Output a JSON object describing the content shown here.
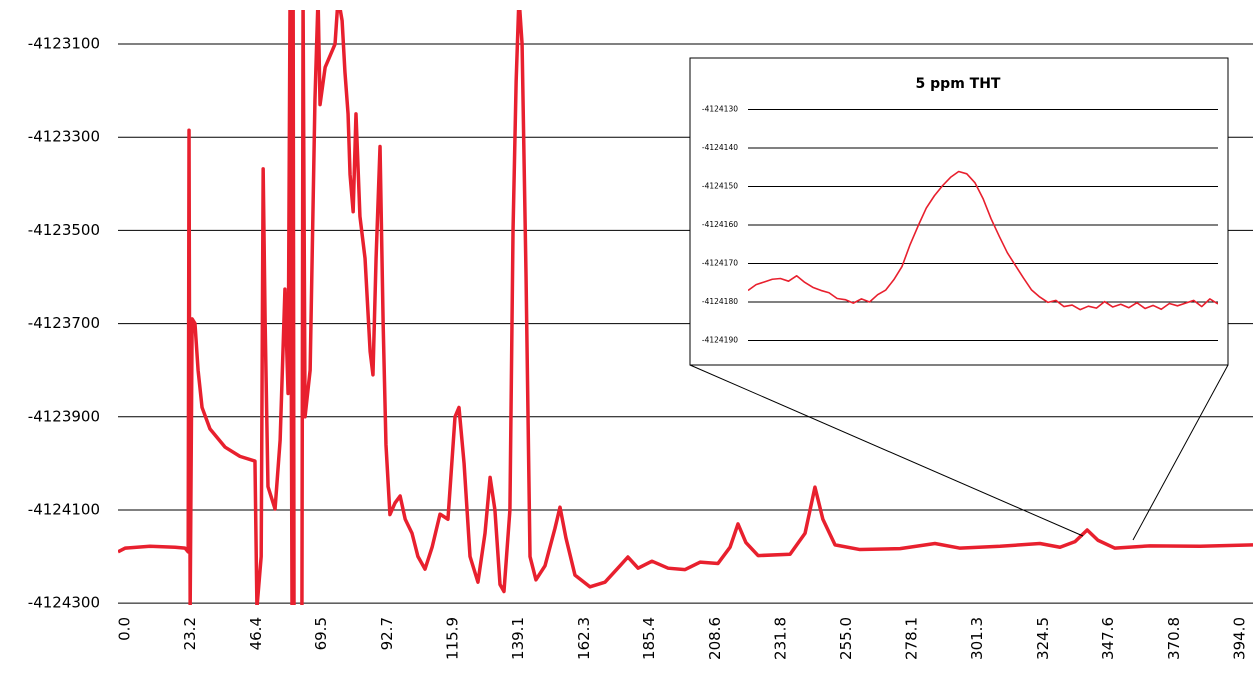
{
  "chart_data": [
    {
      "type": "line",
      "color": "#e8202e",
      "x": [
        -2.5,
        0,
        8.8,
        17.7,
        21.2,
        22.3,
        22.6,
        23.0,
        23.7,
        24.7,
        25.8,
        27.2,
        30.0,
        35.3,
        40.6,
        45.9,
        46.6,
        48.1,
        48.8,
        49.5,
        50.5,
        53.0,
        54.8,
        56.5,
        57.6,
        58.3,
        59.0,
        59.4,
        59.7,
        62.5,
        62.9,
        63.6,
        65.4,
        67.1,
        68.2,
        68.9,
        70.7,
        74.2,
        75.3,
        76.7,
        77.7,
        78.8,
        79.5,
        80.6,
        81.6,
        83.0,
        84.8,
        86.6,
        87.6,
        88.7,
        90.1,
        91.2,
        92.2,
        93.6,
        95.4,
        97.2,
        99.0,
        101.4,
        103.5,
        106.0,
        108.5,
        111.3,
        114.1,
        116.6,
        118.0,
        119.8,
        121.9,
        124.7,
        127.2,
        129.0,
        130.7,
        132.5,
        133.9,
        136.0,
        137.1,
        138.2,
        139.2,
        140.3,
        141.7,
        143.1,
        145.2,
        148.4,
        151.9,
        153.7,
        155.8,
        159.0,
        164.3,
        169.6,
        174.9,
        177.7,
        181.3,
        186.2,
        191.9,
        197.9,
        203.2,
        209.5,
        213.8,
        216.6,
        219.4,
        223.7,
        235.0,
        240.3,
        243.8,
        246.6,
        250.9,
        259.7,
        273.9,
        286.2,
        295.1,
        309.2,
        323.3,
        330.4,
        335.7,
        340.0,
        343.8,
        349.8,
        362.2,
        379.9,
        398.6
      ],
      "values": [
        -4124190,
        -4124182,
        -4124178,
        -4124180,
        -4124182,
        -4124190,
        -4123285,
        -4124310,
        -4123690,
        -4123700,
        -4123800,
        -4123880,
        -4123926,
        -4123965,
        -4123985,
        -4123995,
        -4124310,
        -4124200,
        -4123368,
        -4123700,
        -4124050,
        -4124098,
        -4123950,
        -4123626,
        -4123850,
        -4123000,
        -4124310,
        -4123000,
        -4124310,
        -4124310,
        -4123000,
        -4123900,
        -4123800,
        -4123220,
        -4123000,
        -4123230,
        -4123150,
        -4123100,
        -4123000,
        -4123050,
        -4123160,
        -4123250,
        -4123380,
        -4123460,
        -4123250,
        -4123470,
        -4123560,
        -4123760,
        -4123810,
        -4123560,
        -4123320,
        -4123700,
        -4123960,
        -4124110,
        -4124085,
        -4124070,
        -4124120,
        -4124150,
        -4124200,
        -4124227,
        -4124180,
        -4124109,
        -4124120,
        -4123900,
        -4123880,
        -4124000,
        -4124200,
        -4124255,
        -4124150,
        -4124030,
        -4124100,
        -4124260,
        -4124275,
        -4124100,
        -4123500,
        -4123180,
        -4123000,
        -4123100,
        -4123600,
        -4124200,
        -4124250,
        -4124220,
        -4124140,
        -4124094,
        -4124160,
        -4124240,
        -4124265,
        -4124255,
        -4124220,
        -4124201,
        -4124225,
        -4124210,
        -4124225,
        -4124228,
        -4124212,
        -4124215,
        -4124180,
        -4124130,
        -4124170,
        -4124198,
        -4124195,
        -4124150,
        -4124051,
        -4124120,
        -4124175,
        -4124185,
        -4124183,
        -4124172,
        -4124182,
        -4124178,
        -4124172,
        -4124180,
        -4124168,
        -4124143,
        -4124165,
        -4124182,
        -4124177,
        -4124178,
        -4124175
      ],
      "xlim": [
        -2.5,
        398.6
      ],
      "ylim": [
        -4124304,
        -4123027
      ],
      "yticks": [
        -4123100,
        -4123300,
        -4123500,
        -4123700,
        -4123900,
        -4124100,
        -4124300
      ],
      "xticks": [
        {
          "value": 0,
          "label": "0.0"
        },
        23.2,
        46.4,
        69.5,
        92.7,
        115.9,
        139.1,
        162.3,
        185.4,
        208.6,
        231.8,
        {
          "value": 255,
          "label": "255.0"
        },
        278.1,
        301.3,
        324.5,
        347.6,
        370.8,
        {
          "value": 394,
          "label": "394.0"
        }
      ],
      "grid": true
    },
    {
      "type": "line",
      "title": "5 ppm THT",
      "color": "#e8202e",
      "values": [
        -4124177.0,
        -4124175.5,
        -4124174.8,
        -4124174.1,
        -4124173.9,
        -4124174.6,
        -4124173.2,
        -4124174.9,
        -4124176.2,
        -4124177.0,
        -4124177.6,
        -4124179.1,
        -4124179.4,
        -4124180.3,
        -4124179.2,
        -4124180.0,
        -4124178.1,
        -4124176.9,
        -4124174.2,
        -4124170.8,
        -4124165.1,
        -4124160.2,
        -4124155.6,
        -4124152.4,
        -4124149.8,
        -4124147.6,
        -4124146.1,
        -4124146.7,
        -4124149.0,
        -4124153.1,
        -4124158.4,
        -4124162.9,
        -4124167.2,
        -4124170.5,
        -4124173.8,
        -4124176.9,
        -4124178.7,
        -4124180.1,
        -4124179.6,
        -4124181.2,
        -4124180.8,
        -4124182.0,
        -4124181.1,
        -4124181.6,
        -4124179.9,
        -4124181.3,
        -4124180.6,
        -4124181.5,
        -4124180.2,
        -4124181.7,
        -4124180.9,
        -4124181.9,
        -4124180.4,
        -4124181.0,
        -4124180.3,
        -4124179.6,
        -4124181.2,
        -4124179.2,
        -4124180.5
      ],
      "ylim": [
        -4124193,
        -4124127
      ],
      "yticks": [
        -4124130,
        -4124140,
        -4124150,
        -4124160,
        -4124170,
        -4124180,
        -4124190
      ],
      "grid": true
    }
  ]
}
